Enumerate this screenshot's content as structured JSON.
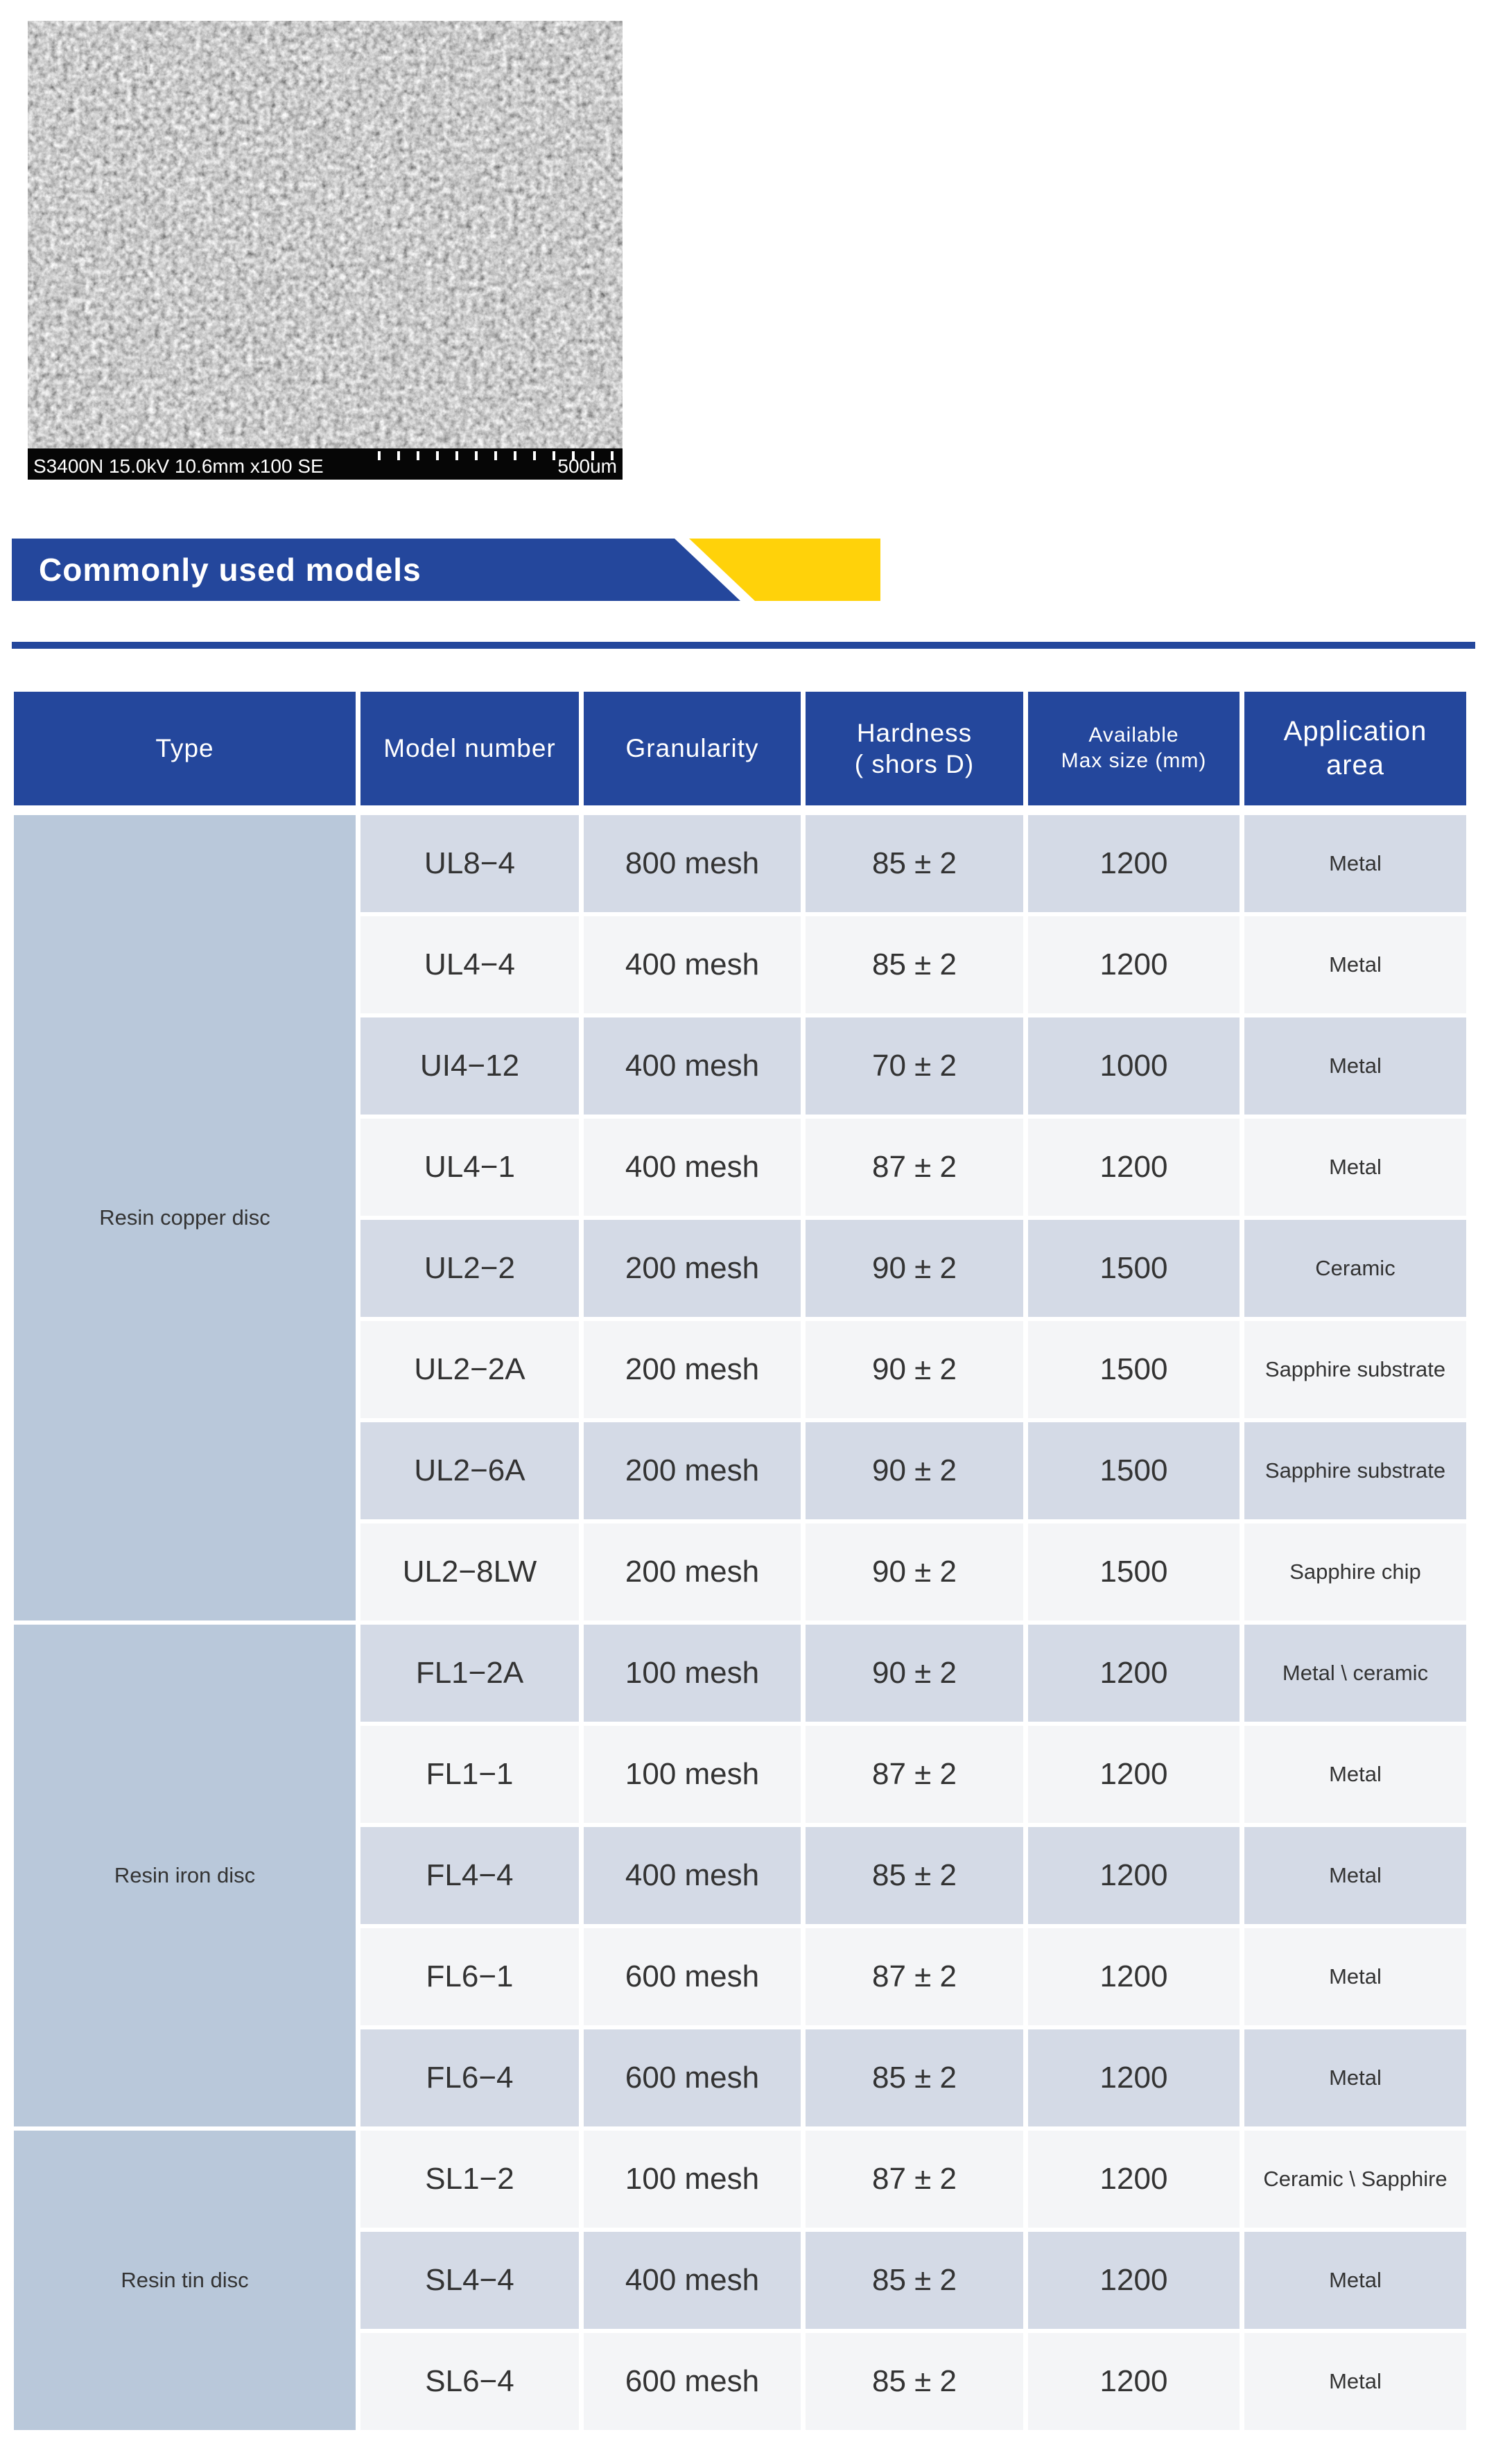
{
  "colors": {
    "banner_blue": "#24479C",
    "banner_yellow": "#FFD20A",
    "rule_blue": "#24479C",
    "header_blue": "#24479C",
    "type_column_bg": "#B9C8DA",
    "row_shade_dark": "#D4DAE6",
    "row_shade_light": "#F4F5F7",
    "cell_text": "#333333"
  },
  "sem_image": {
    "status_line": "S3400N 15.0kV 10.6mm x100 SE",
    "scale_label": "500um"
  },
  "banner": {
    "title": "Commonly used models"
  },
  "table": {
    "columns": [
      {
        "line1": "Type",
        "line2": ""
      },
      {
        "line1": "Model number",
        "line2": ""
      },
      {
        "line1": "Granularity",
        "line2": ""
      },
      {
        "line1": "Hardness",
        "line2": "( shors D)"
      },
      {
        "line1": "Available",
        "line2": "Max size (mm)"
      },
      {
        "line1": "Application",
        "line2": "area"
      }
    ],
    "groups": [
      {
        "type": "Resin copper disc",
        "rows": [
          {
            "model": "UL8−4",
            "granularity": "800 mesh",
            "hardness": "85 ± 2",
            "max_size": "1200",
            "application": "Metal"
          },
          {
            "model": "UL4−4",
            "granularity": "400 mesh",
            "hardness": "85 ± 2",
            "max_size": "1200",
            "application": "Metal"
          },
          {
            "model": "UI4−12",
            "granularity": "400 mesh",
            "hardness": "70 ± 2",
            "max_size": "1000",
            "application": "Metal"
          },
          {
            "model": "UL4−1",
            "granularity": "400 mesh",
            "hardness": "87 ± 2",
            "max_size": "1200",
            "application": "Metal"
          },
          {
            "model": "UL2−2",
            "granularity": "200 mesh",
            "hardness": "90 ± 2",
            "max_size": "1500",
            "application": "Ceramic"
          },
          {
            "model": "UL2−2A",
            "granularity": "200 mesh",
            "hardness": "90 ± 2",
            "max_size": "1500",
            "application": "Sapphire substrate"
          },
          {
            "model": "UL2−6A",
            "granularity": "200 mesh",
            "hardness": "90 ± 2",
            "max_size": "1500",
            "application": "Sapphire substrate"
          },
          {
            "model": "UL2−8LW",
            "granularity": "200 mesh",
            "hardness": "90 ± 2",
            "max_size": "1500",
            "application": "Sapphire chip"
          }
        ]
      },
      {
        "type": "Resin iron disc",
        "rows": [
          {
            "model": "FL1−2A",
            "granularity": "100 mesh",
            "hardness": "90 ± 2",
            "max_size": "1200",
            "application": "Metal \\ ceramic"
          },
          {
            "model": "FL1−1",
            "granularity": "100 mesh",
            "hardness": "87 ± 2",
            "max_size": "1200",
            "application": "Metal"
          },
          {
            "model": "FL4−4",
            "granularity": "400 mesh",
            "hardness": "85 ± 2",
            "max_size": "1200",
            "application": "Metal"
          },
          {
            "model": "FL6−1",
            "granularity": "600 mesh",
            "hardness": "87 ± 2",
            "max_size": "1200",
            "application": "Metal"
          },
          {
            "model": "FL6−4",
            "granularity": "600 mesh",
            "hardness": "85 ± 2",
            "max_size": "1200",
            "application": "Metal"
          }
        ]
      },
      {
        "type": "Resin tin disc",
        "rows": [
          {
            "model": "SL1−2",
            "granularity": "100 mesh",
            "hardness": "87 ± 2",
            "max_size": "1200",
            "application": "Ceramic \\ Sapphire"
          },
          {
            "model": "SL4−4",
            "granularity": "400 mesh",
            "hardness": "85 ± 2",
            "max_size": "1200",
            "application": "Metal"
          },
          {
            "model": "SL6−4",
            "granularity": "600 mesh",
            "hardness": "85 ± 2",
            "max_size": "1200",
            "application": "Metal"
          }
        ]
      }
    ]
  }
}
